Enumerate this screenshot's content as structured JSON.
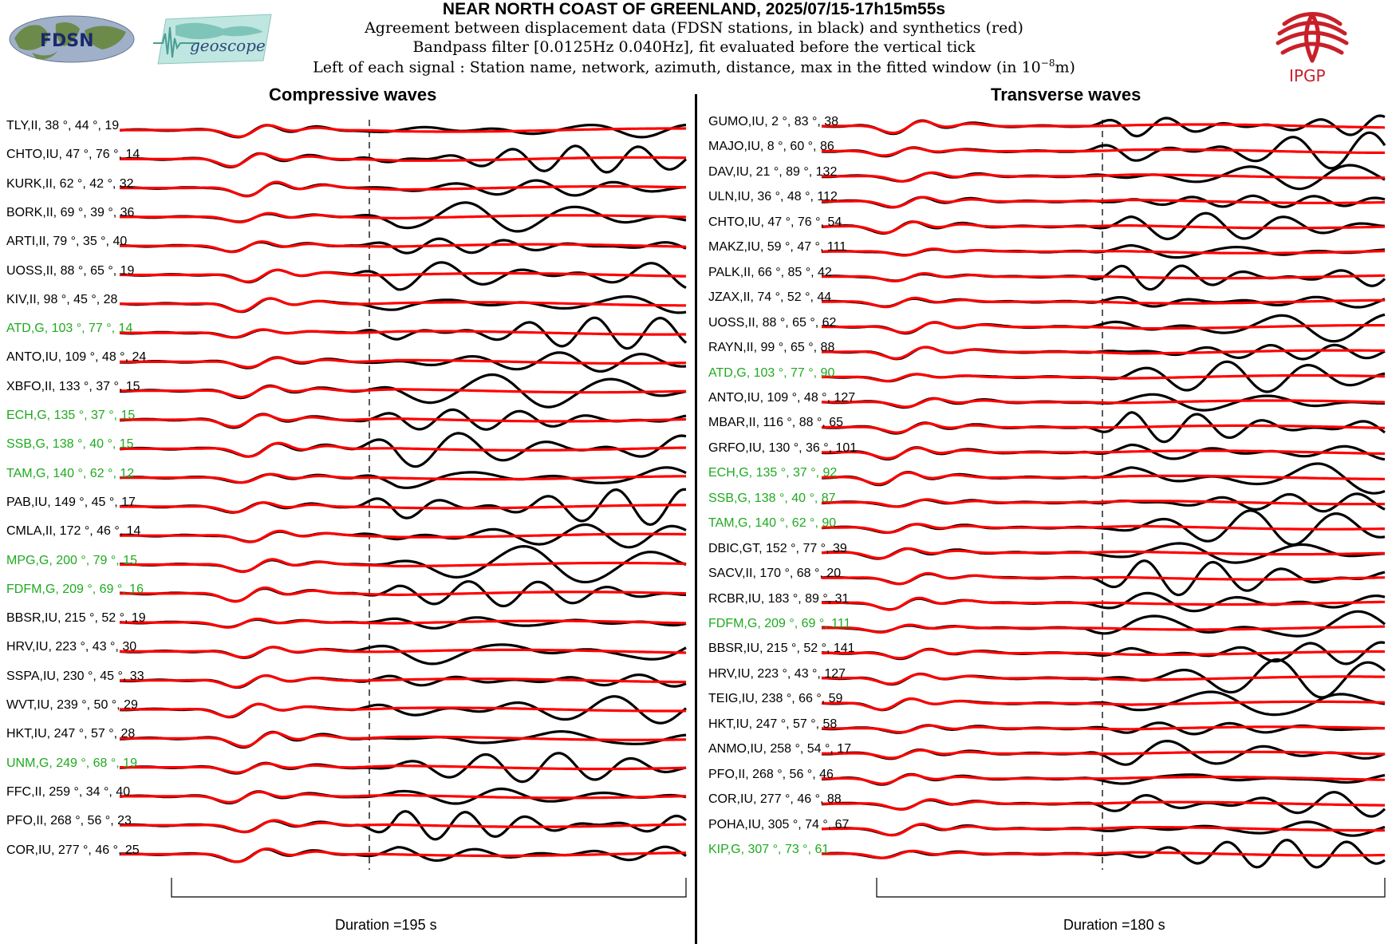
{
  "header": {
    "title": "NEAR NORTH COAST OF GREENLAND, 2025/07/15-17h15m55s",
    "line1": "Agreement between displacement data (FDSN stations, in black) and synthetics (red)",
    "line2": "Bandpass filter [0.0125Hz 0.040Hz], fit evaluated before the vertical tick",
    "line3_prefix": "Left of each signal : Station name, network, azimuth, distance, max in the fitted window (in 10",
    "line3_exp": "−8",
    "line3_suffix": "m)"
  },
  "logos": {
    "fdsn_text": "FDSN",
    "geoscope_text": "geoscope",
    "ipgp_text": "IPGP"
  },
  "colors": {
    "data": "#000000",
    "synthetic": "#ff0000",
    "green_station": "#1faa1f",
    "ipgp_red": "#c8202a"
  },
  "panels": {
    "left_title": "Compressive waves",
    "right_title": "Transverse waves",
    "left_duration": "Duration =195 s",
    "right_duration": "Duration =180 s"
  },
  "chart_data": [
    {
      "type": "line",
      "title": "Compressive waves",
      "duration_s": 195,
      "legend": [
        "data (black)",
        "synthetics (red)"
      ],
      "stations": [
        {
          "label": "TLY,II, 38 °, 44 °, 19",
          "network": "II",
          "azimuth": 38,
          "distance": 44,
          "max": 19,
          "green": false
        },
        {
          "label": "CHTO,IU, 47 °, 76 °, 14",
          "network": "IU",
          "azimuth": 47,
          "distance": 76,
          "max": 14,
          "green": false
        },
        {
          "label": "KURK,II, 62 °, 42 °, 32",
          "network": "II",
          "azimuth": 62,
          "distance": 42,
          "max": 32,
          "green": false
        },
        {
          "label": "BORK,II, 69 °, 39 °, 36",
          "network": "II",
          "azimuth": 69,
          "distance": 39,
          "max": 36,
          "green": false
        },
        {
          "label": "ARTI,II, 79 °, 35 °, 40",
          "network": "II",
          "azimuth": 79,
          "distance": 35,
          "max": 40,
          "green": false
        },
        {
          "label": "UOSS,II, 88 °, 65 °, 19",
          "network": "II",
          "azimuth": 88,
          "distance": 65,
          "max": 19,
          "green": false
        },
        {
          "label": "KIV,II, 98 °, 45 °, 28",
          "network": "II",
          "azimuth": 98,
          "distance": 45,
          "max": 28,
          "green": false
        },
        {
          "label": "ATD,G, 103 °, 77 °, 14",
          "network": "G",
          "azimuth": 103,
          "distance": 77,
          "max": 14,
          "green": true
        },
        {
          "label": "ANTO,IU, 109 °, 48 °, 24",
          "network": "IU",
          "azimuth": 109,
          "distance": 48,
          "max": 24,
          "green": false
        },
        {
          "label": "XBFO,II, 133 °, 37 °, 15",
          "network": "II",
          "azimuth": 133,
          "distance": 37,
          "max": 15,
          "green": false
        },
        {
          "label": "ECH,G, 135 °, 37 °, 15",
          "network": "G",
          "azimuth": 135,
          "distance": 37,
          "max": 15,
          "green": true
        },
        {
          "label": "SSB,G, 138 °, 40 °, 15",
          "network": "G",
          "azimuth": 138,
          "distance": 40,
          "max": 15,
          "green": true
        },
        {
          "label": "TAM,G, 140 °, 62 °, 12",
          "network": "G",
          "azimuth": 140,
          "distance": 62,
          "max": 12,
          "green": true
        },
        {
          "label": "PAB,IU, 149 °, 45 °, 17",
          "network": "IU",
          "azimuth": 149,
          "distance": 45,
          "max": 17,
          "green": false
        },
        {
          "label": "CMLA,II, 172 °, 46 °, 14",
          "network": "II",
          "azimuth": 172,
          "distance": 46,
          "max": 14,
          "green": false
        },
        {
          "label": "MPG,G, 200 °, 79 °, 15",
          "network": "G",
          "azimuth": 200,
          "distance": 79,
          "max": 15,
          "green": true
        },
        {
          "label": "FDFM,G, 209 °, 69 °, 16",
          "network": "G",
          "azimuth": 209,
          "distance": 69,
          "max": 16,
          "green": true
        },
        {
          "label": "BBSR,IU, 215 °, 52 °, 19",
          "network": "IU",
          "azimuth": 215,
          "distance": 52,
          "max": 19,
          "green": false
        },
        {
          "label": "HRV,IU, 223 °, 43 °, 30",
          "network": "IU",
          "azimuth": 223,
          "distance": 43,
          "max": 30,
          "green": false
        },
        {
          "label": "SSPA,IU, 230 °, 45 °, 33",
          "network": "IU",
          "azimuth": 230,
          "distance": 45,
          "max": 33,
          "green": false
        },
        {
          "label": "WVT,IU, 239 °, 50 °, 29",
          "network": "IU",
          "azimuth": 239,
          "distance": 50,
          "max": 29,
          "green": false
        },
        {
          "label": "HKT,IU, 247 °, 57 °, 28",
          "network": "IU",
          "azimuth": 247,
          "distance": 57,
          "max": 28,
          "green": false
        },
        {
          "label": "UNM,G, 249 °, 68 °, 19",
          "network": "G",
          "azimuth": 249,
          "distance": 68,
          "max": 19,
          "green": true
        },
        {
          "label": "FFC,II, 259 °, 34 °, 40",
          "network": "II",
          "azimuth": 259,
          "distance": 34,
          "max": 40,
          "green": false
        },
        {
          "label": "PFO,II, 268 °, 56 °, 23",
          "network": "II",
          "azimuth": 268,
          "distance": 56,
          "max": 23,
          "green": false
        },
        {
          "label": "COR,IU, 277 °, 46 °, 25",
          "network": "IU",
          "azimuth": 277,
          "distance": 46,
          "max": 25,
          "green": false
        }
      ]
    },
    {
      "type": "line",
      "title": "Transverse waves",
      "duration_s": 180,
      "legend": [
        "data (black)",
        "synthetics (red)"
      ],
      "stations": [
        {
          "label": "GUMO,IU, 2 °, 83 °, 38",
          "network": "IU",
          "azimuth": 2,
          "distance": 83,
          "max": 38,
          "green": false
        },
        {
          "label": "MAJO,IU, 8 °, 60 °, 86",
          "network": "IU",
          "azimuth": 8,
          "distance": 60,
          "max": 86,
          "green": false
        },
        {
          "label": "DAV,IU, 21 °, 89 °, 132",
          "network": "IU",
          "azimuth": 21,
          "distance": 89,
          "max": 132,
          "green": false
        },
        {
          "label": "ULN,IU, 36 °, 48 °, 112",
          "network": "IU",
          "azimuth": 36,
          "distance": 48,
          "max": 112,
          "green": false
        },
        {
          "label": "CHTO,IU, 47 °, 76 °, 54",
          "network": "IU",
          "azimuth": 47,
          "distance": 76,
          "max": 54,
          "green": false
        },
        {
          "label": "MAKZ,IU, 59 °, 47 °, 111",
          "network": "IU",
          "azimuth": 59,
          "distance": 47,
          "max": 111,
          "green": false
        },
        {
          "label": "PALK,II, 66 °, 85 °, 42",
          "network": "II",
          "azimuth": 66,
          "distance": 85,
          "max": 42,
          "green": false
        },
        {
          "label": "JZAX,II, 74 °, 52 °, 44",
          "network": "II",
          "azimuth": 74,
          "distance": 52,
          "max": 44,
          "green": false
        },
        {
          "label": "UOSS,II, 88 °, 65 °, 62",
          "network": "II",
          "azimuth": 88,
          "distance": 65,
          "max": 62,
          "green": false
        },
        {
          "label": "RAYN,II, 99 °, 65 °, 88",
          "network": "II",
          "azimuth": 99,
          "distance": 65,
          "max": 88,
          "green": false
        },
        {
          "label": "ATD,G, 103 °, 77 °, 90",
          "network": "G",
          "azimuth": 103,
          "distance": 77,
          "max": 90,
          "green": true
        },
        {
          "label": "ANTO,IU, 109 °, 48 °, 127",
          "network": "IU",
          "azimuth": 109,
          "distance": 48,
          "max": 127,
          "green": false
        },
        {
          "label": "MBAR,II, 116 °, 88 °, 65",
          "network": "II",
          "azimuth": 116,
          "distance": 88,
          "max": 65,
          "green": false
        },
        {
          "label": "GRFO,IU, 130 °, 36 °, 101",
          "network": "IU",
          "azimuth": 130,
          "distance": 36,
          "max": 101,
          "green": false
        },
        {
          "label": "ECH,G, 135 °, 37 °, 92",
          "network": "G",
          "azimuth": 135,
          "distance": 37,
          "max": 92,
          "green": true
        },
        {
          "label": "SSB,G, 138 °, 40 °, 87",
          "network": "G",
          "azimuth": 138,
          "distance": 40,
          "max": 87,
          "green": true
        },
        {
          "label": "TAM,G, 140 °, 62 °, 90",
          "network": "G",
          "azimuth": 140,
          "distance": 62,
          "max": 90,
          "green": true
        },
        {
          "label": "DBIC,GT, 152 °, 77 °, 39",
          "network": "GT",
          "azimuth": 152,
          "distance": 77,
          "max": 39,
          "green": false
        },
        {
          "label": "SACV,II, 170 °, 68 °, 20",
          "network": "II",
          "azimuth": 170,
          "distance": 68,
          "max": 20,
          "green": false
        },
        {
          "label": "RCBR,IU, 183 °, 89 °, 31",
          "network": "IU",
          "azimuth": 183,
          "distance": 89,
          "max": 31,
          "green": false
        },
        {
          "label": "FDFM,G, 209 °, 69 °, 111",
          "network": "G",
          "azimuth": 209,
          "distance": 69,
          "max": 111,
          "green": true
        },
        {
          "label": "BBSR,IU, 215 °, 52 °, 141",
          "network": "IU",
          "azimuth": 215,
          "distance": 52,
          "max": 141,
          "green": false
        },
        {
          "label": "HRV,IU, 223 °, 43 °, 127",
          "network": "IU",
          "azimuth": 223,
          "distance": 43,
          "max": 127,
          "green": false
        },
        {
          "label": "TEIG,IU, 238 °, 66 °, 59",
          "network": "IU",
          "azimuth": 238,
          "distance": 66,
          "max": 59,
          "green": false
        },
        {
          "label": "HKT,IU, 247 °, 57 °, 58",
          "network": "IU",
          "azimuth": 247,
          "distance": 57,
          "max": 58,
          "green": false
        },
        {
          "label": "ANMO,IU, 258 °, 54 °, 17",
          "network": "IU",
          "azimuth": 258,
          "distance": 54,
          "max": 17,
          "green": false
        },
        {
          "label": "PFO,II, 268 °, 56 °, 46",
          "network": "II",
          "azimuth": 268,
          "distance": 56,
          "max": 46,
          "green": false
        },
        {
          "label": "COR,IU, 277 °, 46 °, 88",
          "network": "IU",
          "azimuth": 277,
          "distance": 46,
          "max": 88,
          "green": false
        },
        {
          "label": "POHA,IU, 305 °, 74 °, 67",
          "network": "IU",
          "azimuth": 305,
          "distance": 74,
          "max": 67,
          "green": false
        },
        {
          "label": "KIP,G, 307 °, 73 °, 61",
          "network": "G",
          "azimuth": 307,
          "distance": 73,
          "max": 61,
          "green": true
        }
      ]
    }
  ]
}
